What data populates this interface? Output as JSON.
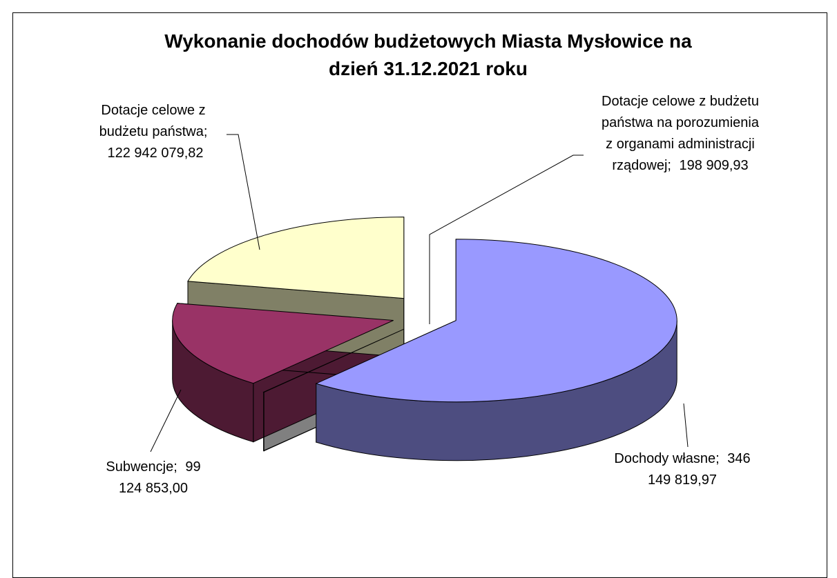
{
  "chart_data": {
    "type": "pie3d",
    "title": "Wykonanie dochodów budżetowych Miasta Mysłowice na dzień 31.12.2021 roku",
    "categories": [
      "Dochody własne",
      "Dotacje celowe z budżetu państwa na porozumienia z organami administracji rządowej",
      "Subwencje",
      "Dotacje celowe z budżetu państwa"
    ],
    "values": [
      346149819.97,
      198909.93,
      99124853.0,
      122942079.82
    ],
    "value_labels": [
      "346 149 819,97",
      "198 909,93",
      "99 124 853,00",
      "122 942 079,82"
    ],
    "colors": [
      "#9999ff",
      "#ffffff",
      "#993366",
      "#ffffcc"
    ]
  }
}
